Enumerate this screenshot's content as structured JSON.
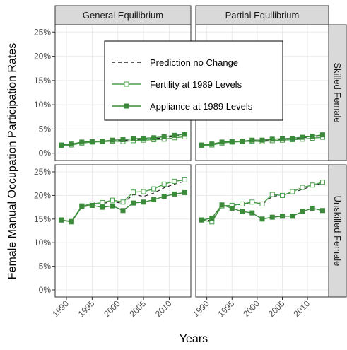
{
  "chart_data": {
    "type": "line",
    "xlabel": "Years",
    "ylabel": "Female Manual Occupation Participation Rates",
    "cols": [
      "General Equilibrium",
      "Partial Equilibrium"
    ],
    "rows": [
      "Skilled Female",
      "Unskilled Female"
    ],
    "x": [
      1989,
      1991,
      1993,
      1995,
      1997,
      1999,
      2001,
      2003,
      2005,
      2007,
      2009,
      2011,
      2013
    ],
    "xlim": [
      1987.8,
      2014.2
    ],
    "xticks": [
      1990,
      1995,
      2000,
      2005,
      2010
    ],
    "ylim": [
      -1.5,
      26.5
    ],
    "yticks": [
      {
        "value": 0,
        "label": "0%"
      },
      {
        "value": 5,
        "label": "5%"
      },
      {
        "value": 10,
        "label": "10%"
      },
      {
        "value": 15,
        "label": "15%"
      },
      {
        "value": 20,
        "label": "20%"
      },
      {
        "value": 25,
        "label": "25%"
      }
    ],
    "grid": true,
    "series": [
      {
        "name": "Prediction no Change",
        "color": "#222222",
        "dash": true,
        "marker": "none"
      },
      {
        "name": "Fertility at 1989 Levels",
        "color": "#4aa04a",
        "dash": false,
        "marker": "open-square"
      },
      {
        "name": "Appliance at 1989 Levels",
        "color": "#3a8a3a",
        "dash": false,
        "marker": "filled-square"
      }
    ],
    "panels": [
      {
        "values": [
          [
            1.7,
            1.8,
            2.2,
            2.3,
            2.5,
            2.6,
            2.6,
            2.8,
            2.9,
            3.0,
            3.2,
            3.5,
            3.7
          ],
          [
            1.6,
            1.7,
            2.1,
            2.3,
            2.4,
            2.5,
            2.4,
            2.6,
            2.7,
            2.8,
            2.9,
            3.2,
            3.4
          ],
          [
            1.7,
            1.9,
            2.3,
            2.4,
            2.5,
            2.7,
            2.8,
            3.0,
            3.1,
            3.2,
            3.4,
            3.7,
            3.9
          ]
        ]
      },
      {
        "values": [
          [
            1.7,
            1.8,
            2.2,
            2.3,
            2.5,
            2.6,
            2.6,
            2.8,
            2.9,
            3.0,
            3.2,
            3.4,
            3.6
          ],
          [
            1.6,
            1.7,
            2.1,
            2.3,
            2.4,
            2.5,
            2.4,
            2.6,
            2.7,
            2.8,
            2.9,
            3.1,
            3.3
          ],
          [
            1.7,
            1.9,
            2.3,
            2.4,
            2.5,
            2.7,
            2.7,
            2.9,
            3.0,
            3.1,
            3.3,
            3.5,
            3.8
          ]
        ]
      },
      {
        "values": [
          [
            14.8,
            14.5,
            17.7,
            18.0,
            18.3,
            18.7,
            18.3,
            20.2,
            19.8,
            20.5,
            21.6,
            22.4,
            23.0
          ],
          [
            14.8,
            14.5,
            17.8,
            18.2,
            18.5,
            19.0,
            18.6,
            20.7,
            20.8,
            21.4,
            22.4,
            23.0,
            23.3
          ],
          [
            14.8,
            14.4,
            17.6,
            17.9,
            17.5,
            17.8,
            16.8,
            18.4,
            18.6,
            19.1,
            19.8,
            20.3,
            20.6
          ]
        ]
      },
      {
        "values": [
          [
            14.8,
            14.7,
            17.8,
            17.9,
            18.1,
            18.5,
            18.1,
            19.8,
            20.1,
            20.6,
            21.3,
            22.0,
            22.6
          ],
          [
            14.8,
            14.4,
            17.8,
            17.9,
            18.2,
            18.6,
            18.2,
            20.2,
            20.0,
            20.8,
            21.7,
            22.2,
            22.8
          ],
          [
            14.8,
            15.2,
            18.0,
            17.3,
            16.6,
            16.3,
            15.0,
            15.4,
            15.6,
            15.6,
            16.6,
            17.3,
            16.8
          ]
        ]
      }
    ]
  }
}
